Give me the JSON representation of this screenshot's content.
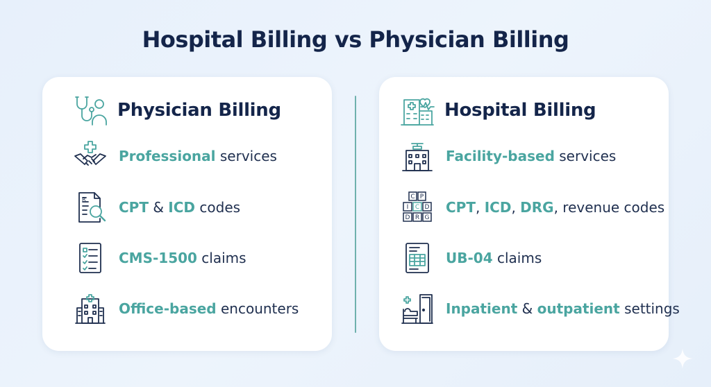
{
  "title": "Hospital Billing vs Physician Billing",
  "colors": {
    "navy": "#14254a",
    "teal": "#4aa5a0",
    "background": "#e7f0fb"
  },
  "physician": {
    "title": "Physician Billing",
    "icon": "doctor-stethoscope-icon",
    "items": [
      {
        "icon": "handshake-icon",
        "highlight": "Professional",
        "text": " services"
      },
      {
        "icon": "document-search-icon",
        "highlight": "CPT",
        "mid": " & ",
        "highlight2": "ICD",
        "text": " codes"
      },
      {
        "icon": "checklist-form-icon",
        "highlight": "CMS-1500",
        "text": " claims"
      },
      {
        "icon": "clinic-building-icon",
        "highlight": "Office-based",
        "text": " encounters"
      }
    ]
  },
  "hospital": {
    "title": "Hospital Billing",
    "icon": "hospital-heartbeat-icon",
    "items": [
      {
        "icon": "hospital-helipad-icon",
        "highlight": "Facility-based",
        "text": " services"
      },
      {
        "icon": "code-blocks-icon",
        "codes": [
          "C",
          "P",
          "I",
          "C",
          "D",
          "D",
          "R",
          "G"
        ],
        "highlight": "CPT",
        "mid": ", ",
        "highlight2": "ICD",
        "mid2": ", ",
        "highlight3": "DRG",
        "text": ", revenue codes"
      },
      {
        "icon": "ub04-form-icon",
        "highlight": "UB-04",
        "text": " claims"
      },
      {
        "icon": "hospital-bed-door-icon",
        "highlight": "Inpatient",
        "mid": " & ",
        "highlight2": "outpatient",
        "text": " settings"
      }
    ]
  }
}
